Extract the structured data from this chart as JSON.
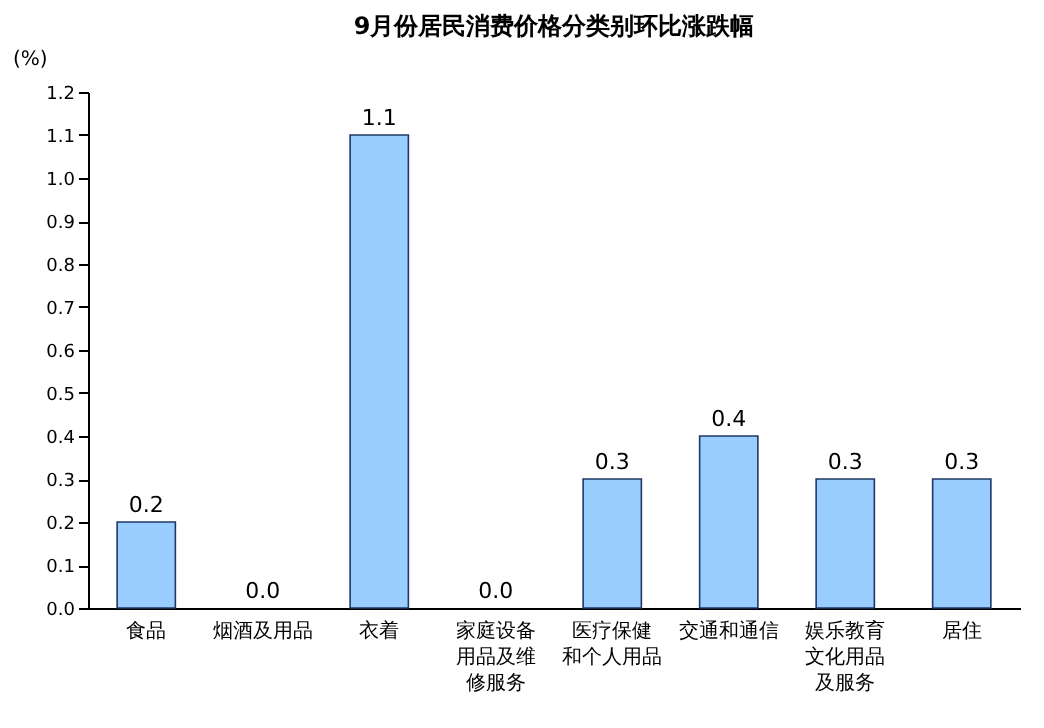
{
  "chart_data": {
    "type": "bar",
    "title": "9月份居民消费价格分类别环比涨跌幅",
    "ylabel": "(%)",
    "categories": [
      "食品",
      "烟酒及用品",
      "衣着",
      "家庭设备用品及维修服务",
      "医疗保健和个人用品",
      "交通和通信",
      "娱乐教育文化用品及服务",
      "居住"
    ],
    "values": [
      0.2,
      0.0,
      1.1,
      0.0,
      0.3,
      0.4,
      0.3,
      0.3
    ],
    "value_labels": [
      "0.2",
      "0.0",
      "1.1",
      "0.0",
      "0.3",
      "0.4",
      "0.3",
      "0.3"
    ],
    "color": "#99ccff",
    "grid": false,
    "ylim": [
      0,
      1.2
    ],
    "yticks": [
      {
        "value": 0,
        "label": "0.0"
      },
      0.1,
      0.2,
      0.3,
      0.4,
      0.5,
      0.6,
      0.7,
      0.8,
      0.9,
      {
        "value": 1,
        "label": "1.0"
      },
      1.1,
      1.2
    ]
  }
}
